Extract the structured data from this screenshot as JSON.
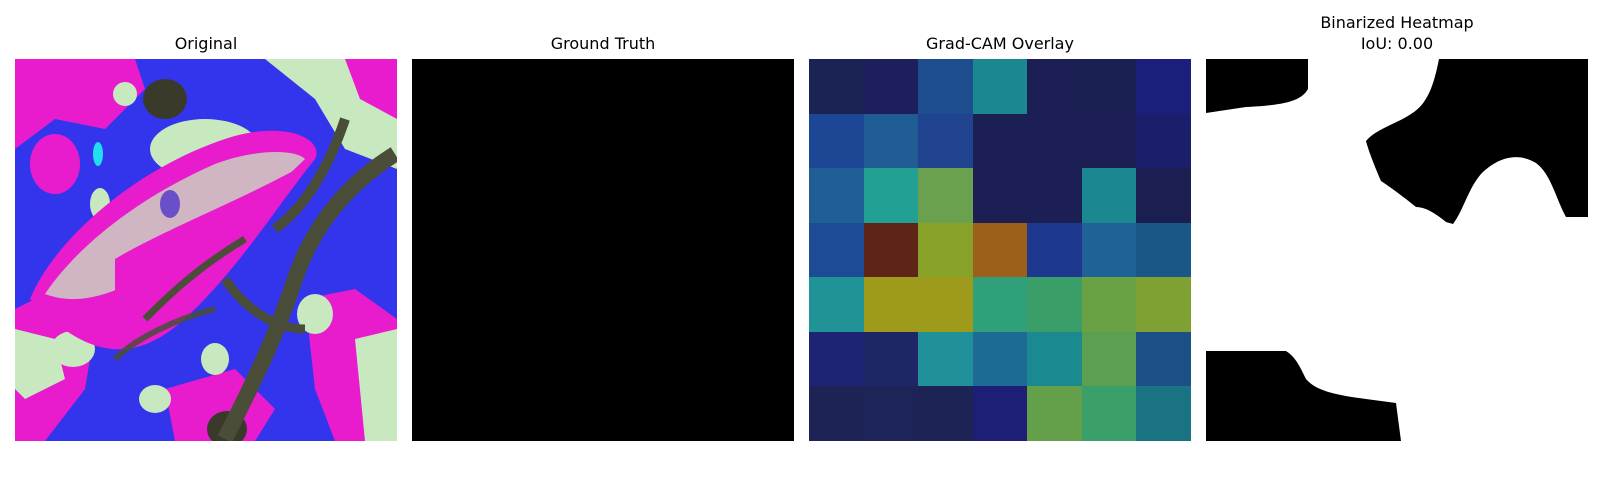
{
  "panels": [
    {
      "title": "Original"
    },
    {
      "title": "Ground Truth"
    },
    {
      "title": "Grad-CAM Overlay"
    },
    {
      "title_line1": "Binarized Heatmap",
      "title_line2": "IoU: 0.00"
    }
  ],
  "gradcam_grid": [
    [
      "#1b2355",
      "#1c1f5c",
      "#1d4d8f",
      "#1b8790",
      "#1b1f54",
      "#1a1f52",
      "#1b1e7a"
    ],
    [
      "#1d4795",
      "#1f5c94",
      "#1f438f",
      "#1b1f54",
      "#1b1f54",
      "#1b1f54",
      "#1b1e6a"
    ],
    [
      "#1f5f95",
      "#22a094",
      "#6aa14e",
      "#1b1f54",
      "#1b1f54",
      "#1b8891",
      "#1b1e50"
    ],
    [
      "#1e4b95",
      "#5e2418",
      "#88a129",
      "#9c6018",
      "#1f388f",
      "#1e6296",
      "#1a5788"
    ],
    [
      "#1f9396",
      "#9d9a1c",
      "#9d9a1c",
      "#2fa07a",
      "#3a9e68",
      "#6aa144",
      "#7fa133"
    ],
    [
      "#1e2373",
      "#1f2665",
      "#20919a",
      "#1d6a95",
      "#1b8a90",
      "#5aa050",
      "#1b4f86"
    ],
    [
      "#1d2455",
      "#1d2457",
      "#1d2455",
      "#1d1f76",
      "#64a049",
      "#3a9f68",
      "#1a7383"
    ]
  ],
  "colors": {
    "ground_truth": "#000000",
    "binary_fg": "#ffffff",
    "binary_bg": "#000000"
  }
}
